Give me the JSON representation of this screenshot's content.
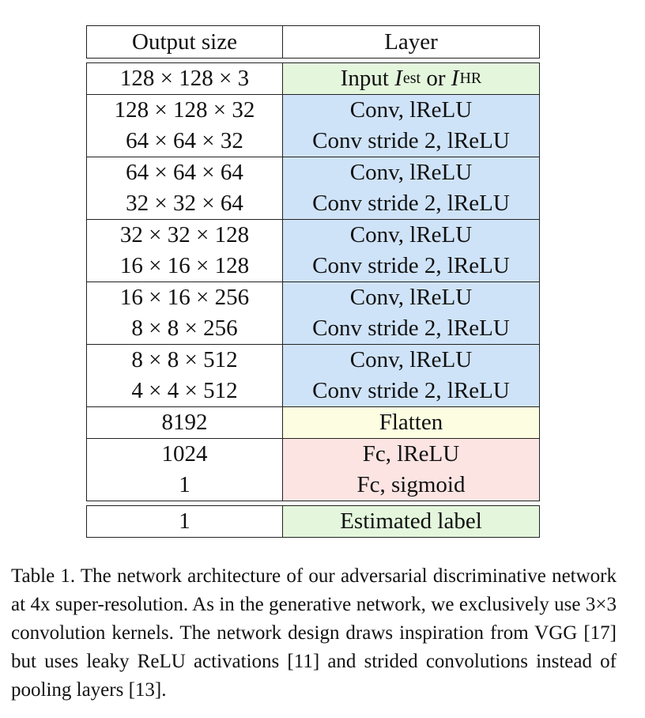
{
  "table": {
    "headers": {
      "output_size": "Output size",
      "layer": "Layer"
    },
    "input": {
      "size": "128 × 128 × 3",
      "layer_prefix": "Input ",
      "sym1": "I",
      "sub1": "est",
      "connector": " or ",
      "sym2": "I",
      "sub2": "HR"
    },
    "blocks": [
      {
        "sizes": [
          "128 × 128 × 32",
          "64 × 64 × 32"
        ],
        "layers": [
          "Conv, lReLU",
          "Conv stride 2, lReLU"
        ]
      },
      {
        "sizes": [
          "64 × 64 × 64",
          "32 × 32 × 64"
        ],
        "layers": [
          "Conv, lReLU",
          "Conv stride 2, lReLU"
        ]
      },
      {
        "sizes": [
          "32 × 32 × 128",
          "16 × 16 × 128"
        ],
        "layers": [
          "Conv, lReLU",
          "Conv stride 2, lReLU"
        ]
      },
      {
        "sizes": [
          "16 × 16 × 256",
          "8 × 8 × 256"
        ],
        "layers": [
          "Conv, lReLU",
          "Conv stride 2, lReLU"
        ]
      },
      {
        "sizes": [
          "8 × 8 × 512",
          "4 × 4 × 512"
        ],
        "layers": [
          "Conv, lReLU",
          "Conv stride 2, lReLU"
        ]
      }
    ],
    "flatten": {
      "size": "8192",
      "layer": "Flatten"
    },
    "fc": {
      "sizes": [
        "1024",
        "1"
      ],
      "layers": [
        "Fc, lReLU",
        "Fc, sigmoid"
      ]
    },
    "output": {
      "size": "1",
      "layer": "Estimated label"
    }
  },
  "caption": "Table 1. The network architecture of our adversarial discriminative network at 4x super-resolution. As in the generative network, we exclusively use 3×3 convolution kernels. The network design draws inspiration from VGG [17] but uses leaky ReLU activations [11] and strided convolutions instead of pooling layers [13].",
  "colors": {
    "input": "#e4f7dd",
    "conv": "#cfe3f8",
    "flatten": "#fcfde1",
    "fc": "#fbe4e2",
    "border": "#222222"
  }
}
